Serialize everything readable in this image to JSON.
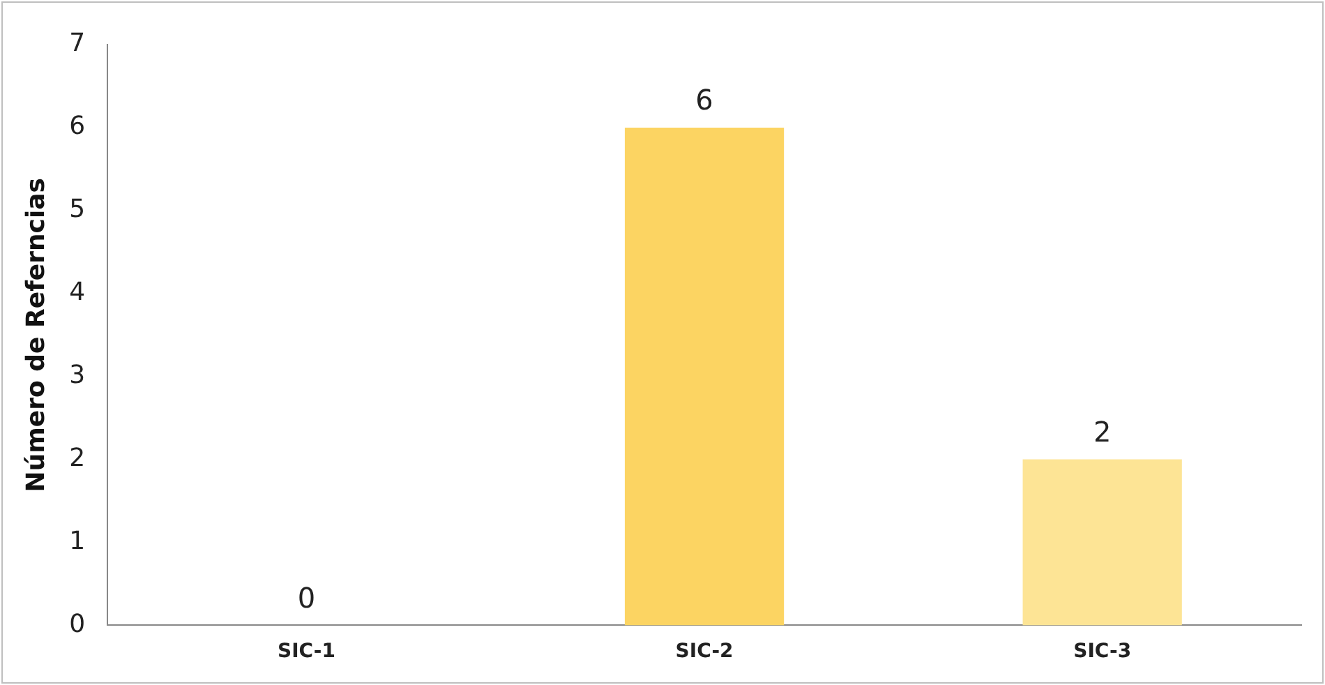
{
  "chart_data": {
    "type": "bar",
    "ylabel": "Número de Referncias",
    "categories": [
      "SIC-1",
      "SIC-2",
      "SIC-3"
    ],
    "values": [
      0,
      6,
      2
    ],
    "colors": [
      "#fcd462",
      "#fcd462",
      "#fde495"
    ],
    "ylim": [
      0,
      7
    ],
    "yticks": [
      0,
      1,
      2,
      3,
      4,
      5,
      6,
      7
    ],
    "grid": false,
    "legend": false,
    "data_labels": true
  }
}
